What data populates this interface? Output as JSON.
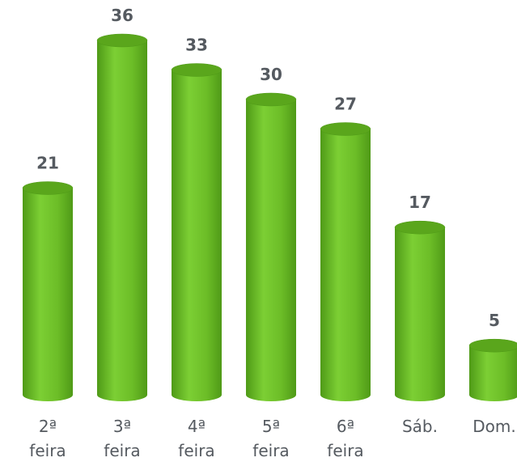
{
  "chart_data": {
    "type": "bar",
    "categories": [
      "2ª feira",
      "3ª feira",
      "4ª feira",
      "5ª feira",
      "6ª feira",
      "Sáb.",
      "Dom."
    ],
    "values": [
      21,
      36,
      33,
      30,
      27,
      17,
      5
    ],
    "color": "#6cbd27"
  }
}
